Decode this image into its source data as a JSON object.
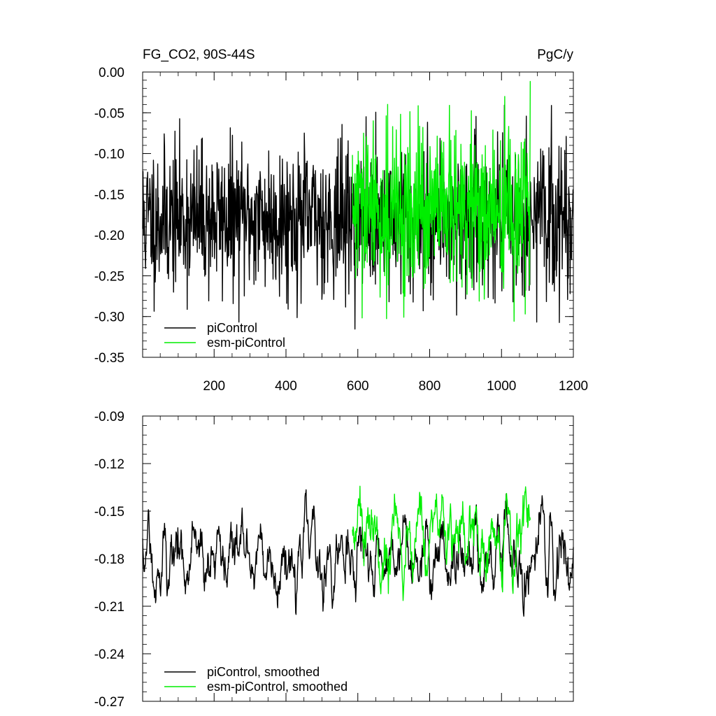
{
  "chart_data": [
    {
      "type": "line",
      "title_left": "FG_CO2, 90S-44S",
      "title_right": "PgC/y",
      "xlabel": "",
      "ylabel": "",
      "xlim": [
        1,
        1200
      ],
      "ylim": [
        -0.35,
        0.0
      ],
      "xticks": [
        200,
        400,
        600,
        800,
        1000,
        1200
      ],
      "xtick_labels": [
        "200",
        "400",
        "600",
        "800",
        "1000",
        "1200"
      ],
      "yticks": [
        0.0,
        -0.05,
        -0.1,
        -0.15,
        -0.2,
        -0.25,
        -0.3,
        -0.35
      ],
      "ytick_labels": [
        "0.00",
        "-0.05",
        "-0.10",
        "-0.15",
        "-0.20",
        "-0.25",
        "-0.30",
        "-0.35"
      ],
      "legend_position": "bottom-left",
      "series": [
        {
          "name": "piControl",
          "color": "#000000",
          "x_range": [
            1,
            1200
          ],
          "mean": -0.18,
          "noise": 0.045,
          "seed": 11,
          "smooth": 1
        },
        {
          "name": "esm-piControl",
          "color": "#00ee00",
          "x_range": [
            585,
            1080
          ],
          "mean": -0.172,
          "noise": 0.05,
          "seed": 29,
          "smooth": 1
        }
      ]
    },
    {
      "type": "line",
      "xlabel": "",
      "ylabel": "",
      "xlim": [
        1,
        1200
      ],
      "ylim": [
        -0.27,
        -0.09
      ],
      "xticks": [
        200,
        400,
        600,
        800,
        1000,
        1200
      ],
      "xtick_labels": [],
      "yticks": [
        -0.09,
        -0.12,
        -0.15,
        -0.18,
        -0.21,
        -0.24,
        -0.27
      ],
      "ytick_labels": [
        "-0.09",
        "-0.12",
        "-0.15",
        "-0.18",
        "-0.21",
        "-0.24",
        "-0.27"
      ],
      "legend_position": "bottom-left",
      "series": [
        {
          "name": "piControl, smoothed",
          "color": "#000000",
          "x_range": [
            1,
            1200
          ],
          "mean": -0.178,
          "noise": 0.045,
          "seed": 11,
          "smooth": 5
        },
        {
          "name": "esm-piControl, smoothed",
          "color": "#00ee00",
          "x_range": [
            585,
            1080
          ],
          "mean": -0.17,
          "noise": 0.05,
          "seed": 29,
          "smooth": 5
        }
      ]
    }
  ]
}
